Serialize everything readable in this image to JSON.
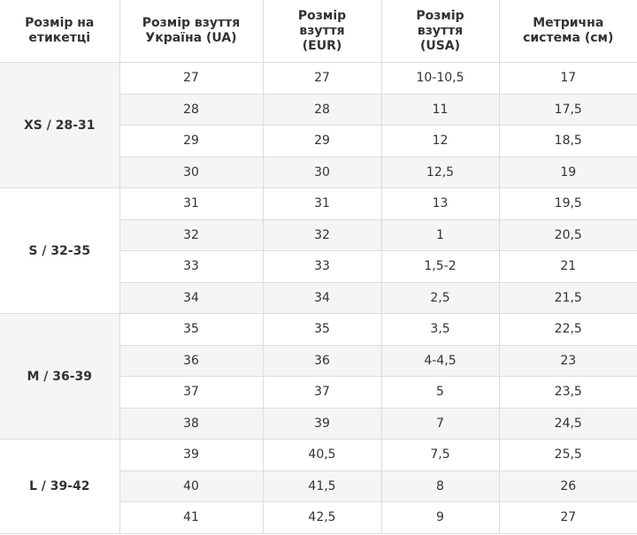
{
  "table": {
    "header": [
      "Розмір на\nетикетці",
      "Розмір взуття\nУкраїна (UA)",
      "Розмір\nвзуття\n(EUR)",
      "Розмір\nвзуття\n(USA)",
      "Метрична\nсистема (см)"
    ],
    "groups": [
      {
        "label": "XS / 28-31",
        "rows": [
          [
            "27",
            "27",
            "10-10,5",
            "17"
          ],
          [
            "28",
            "28",
            "11",
            "17,5"
          ],
          [
            "29",
            "29",
            "12",
            "18,5"
          ],
          [
            "30",
            "30",
            "12,5",
            "19"
          ]
        ]
      },
      {
        "label": "S / 32-35",
        "rows": [
          [
            "31",
            "31",
            "13",
            "19,5"
          ],
          [
            "32",
            "32",
            "1",
            "20,5"
          ],
          [
            "33",
            "33",
            "1,5-2",
            "21"
          ],
          [
            "34",
            "34",
            "2,5",
            "21,5"
          ]
        ]
      },
      {
        "label": "M / 36-39",
        "rows": [
          [
            "35",
            "35",
            "3,5",
            "22,5"
          ],
          [
            "36",
            "36",
            "4-4,5",
            "23"
          ],
          [
            "37",
            "37",
            "5",
            "23,5"
          ],
          [
            "38",
            "39",
            "7",
            "24,5"
          ]
        ]
      },
      {
        "label": "L / 39-42",
        "rows": [
          [
            "39",
            "40,5",
            "7,5",
            "25,5"
          ],
          [
            "40",
            "41,5",
            "8",
            "26"
          ],
          [
            "41",
            "42,5",
            "9",
            "27"
          ]
        ]
      }
    ]
  }
}
